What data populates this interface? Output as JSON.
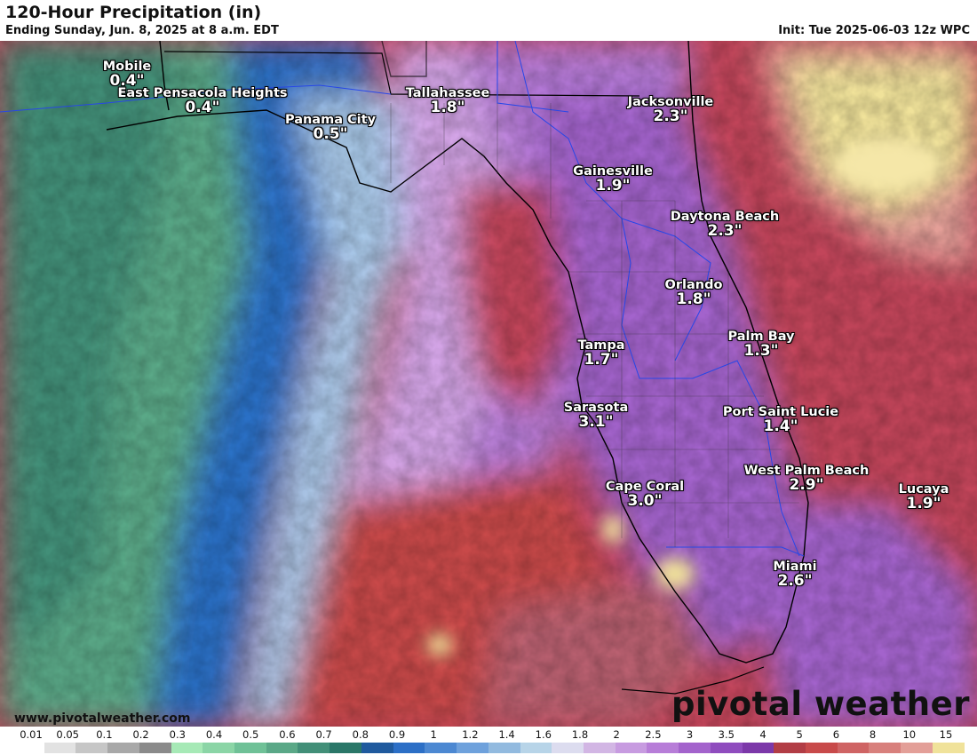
{
  "header": {
    "title": "120-Hour Precipitation (in)",
    "subtitle": "Ending Sunday, Jun. 8, 2025 at 8 a.m. EDT",
    "init": "Init: Tue 2025-06-03 12z WPC"
  },
  "cities": [
    {
      "name": "Mobile",
      "value": "0.4\""
    },
    {
      "name": "East Pensacola Heights",
      "value": "0.4\""
    },
    {
      "name": "Panama City",
      "value": "0.5\""
    },
    {
      "name": "Tallahassee",
      "value": "1.8\""
    },
    {
      "name": "Jacksonville",
      "value": "2.3\""
    },
    {
      "name": "Gainesville",
      "value": "1.9\""
    },
    {
      "name": "Daytona Beach",
      "value": "2.3\""
    },
    {
      "name": "Orlando",
      "value": "1.8\""
    },
    {
      "name": "Palm Bay",
      "value": "1.3\""
    },
    {
      "name": "Tampa",
      "value": "1.7\""
    },
    {
      "name": "Sarasota",
      "value": "3.1\""
    },
    {
      "name": "Port Saint Lucie",
      "value": "1.4\""
    },
    {
      "name": "West Palm Beach",
      "value": "2.9\""
    },
    {
      "name": "Lucaya",
      "value": "1.9\""
    },
    {
      "name": "Cape Coral",
      "value": "3.0\""
    },
    {
      "name": "Miami",
      "value": "2.6\""
    }
  ],
  "footer": {
    "website": "www.pivotalweather.com",
    "brand": "pivotal weather"
  },
  "legend": {
    "labels": [
      "0.01",
      "0.05",
      "0.1",
      "0.2",
      "0.3",
      "0.4",
      "0.5",
      "0.6",
      "0.7",
      "0.8",
      "0.9",
      "1",
      "1.2",
      "1.4",
      "1.6",
      "1.8",
      "2",
      "2.5",
      "3",
      "3.5",
      "4",
      "5",
      "6",
      "8",
      "10",
      "15"
    ],
    "colors": [
      "#ffffff",
      "#e2e2e2",
      "#c6c6c6",
      "#a8a8a8",
      "#8a8a8a",
      "#a6e9b6",
      "#8bd5a6",
      "#6fc197",
      "#5aa887",
      "#428f78",
      "#2a7768",
      "#1f5a9e",
      "#2c6fc6",
      "#4c88d2",
      "#6ea1dc",
      "#92badf",
      "#b7d4e8",
      "#dcdcef",
      "#d2b6e4",
      "#c79be0",
      "#b77dd8",
      "#a363cc",
      "#8f4cbe",
      "#7c38a9",
      "#b23d45",
      "#c84a4a",
      "#cf6464",
      "#d8807c",
      "#e39f98",
      "#f0e29a"
    ]
  }
}
